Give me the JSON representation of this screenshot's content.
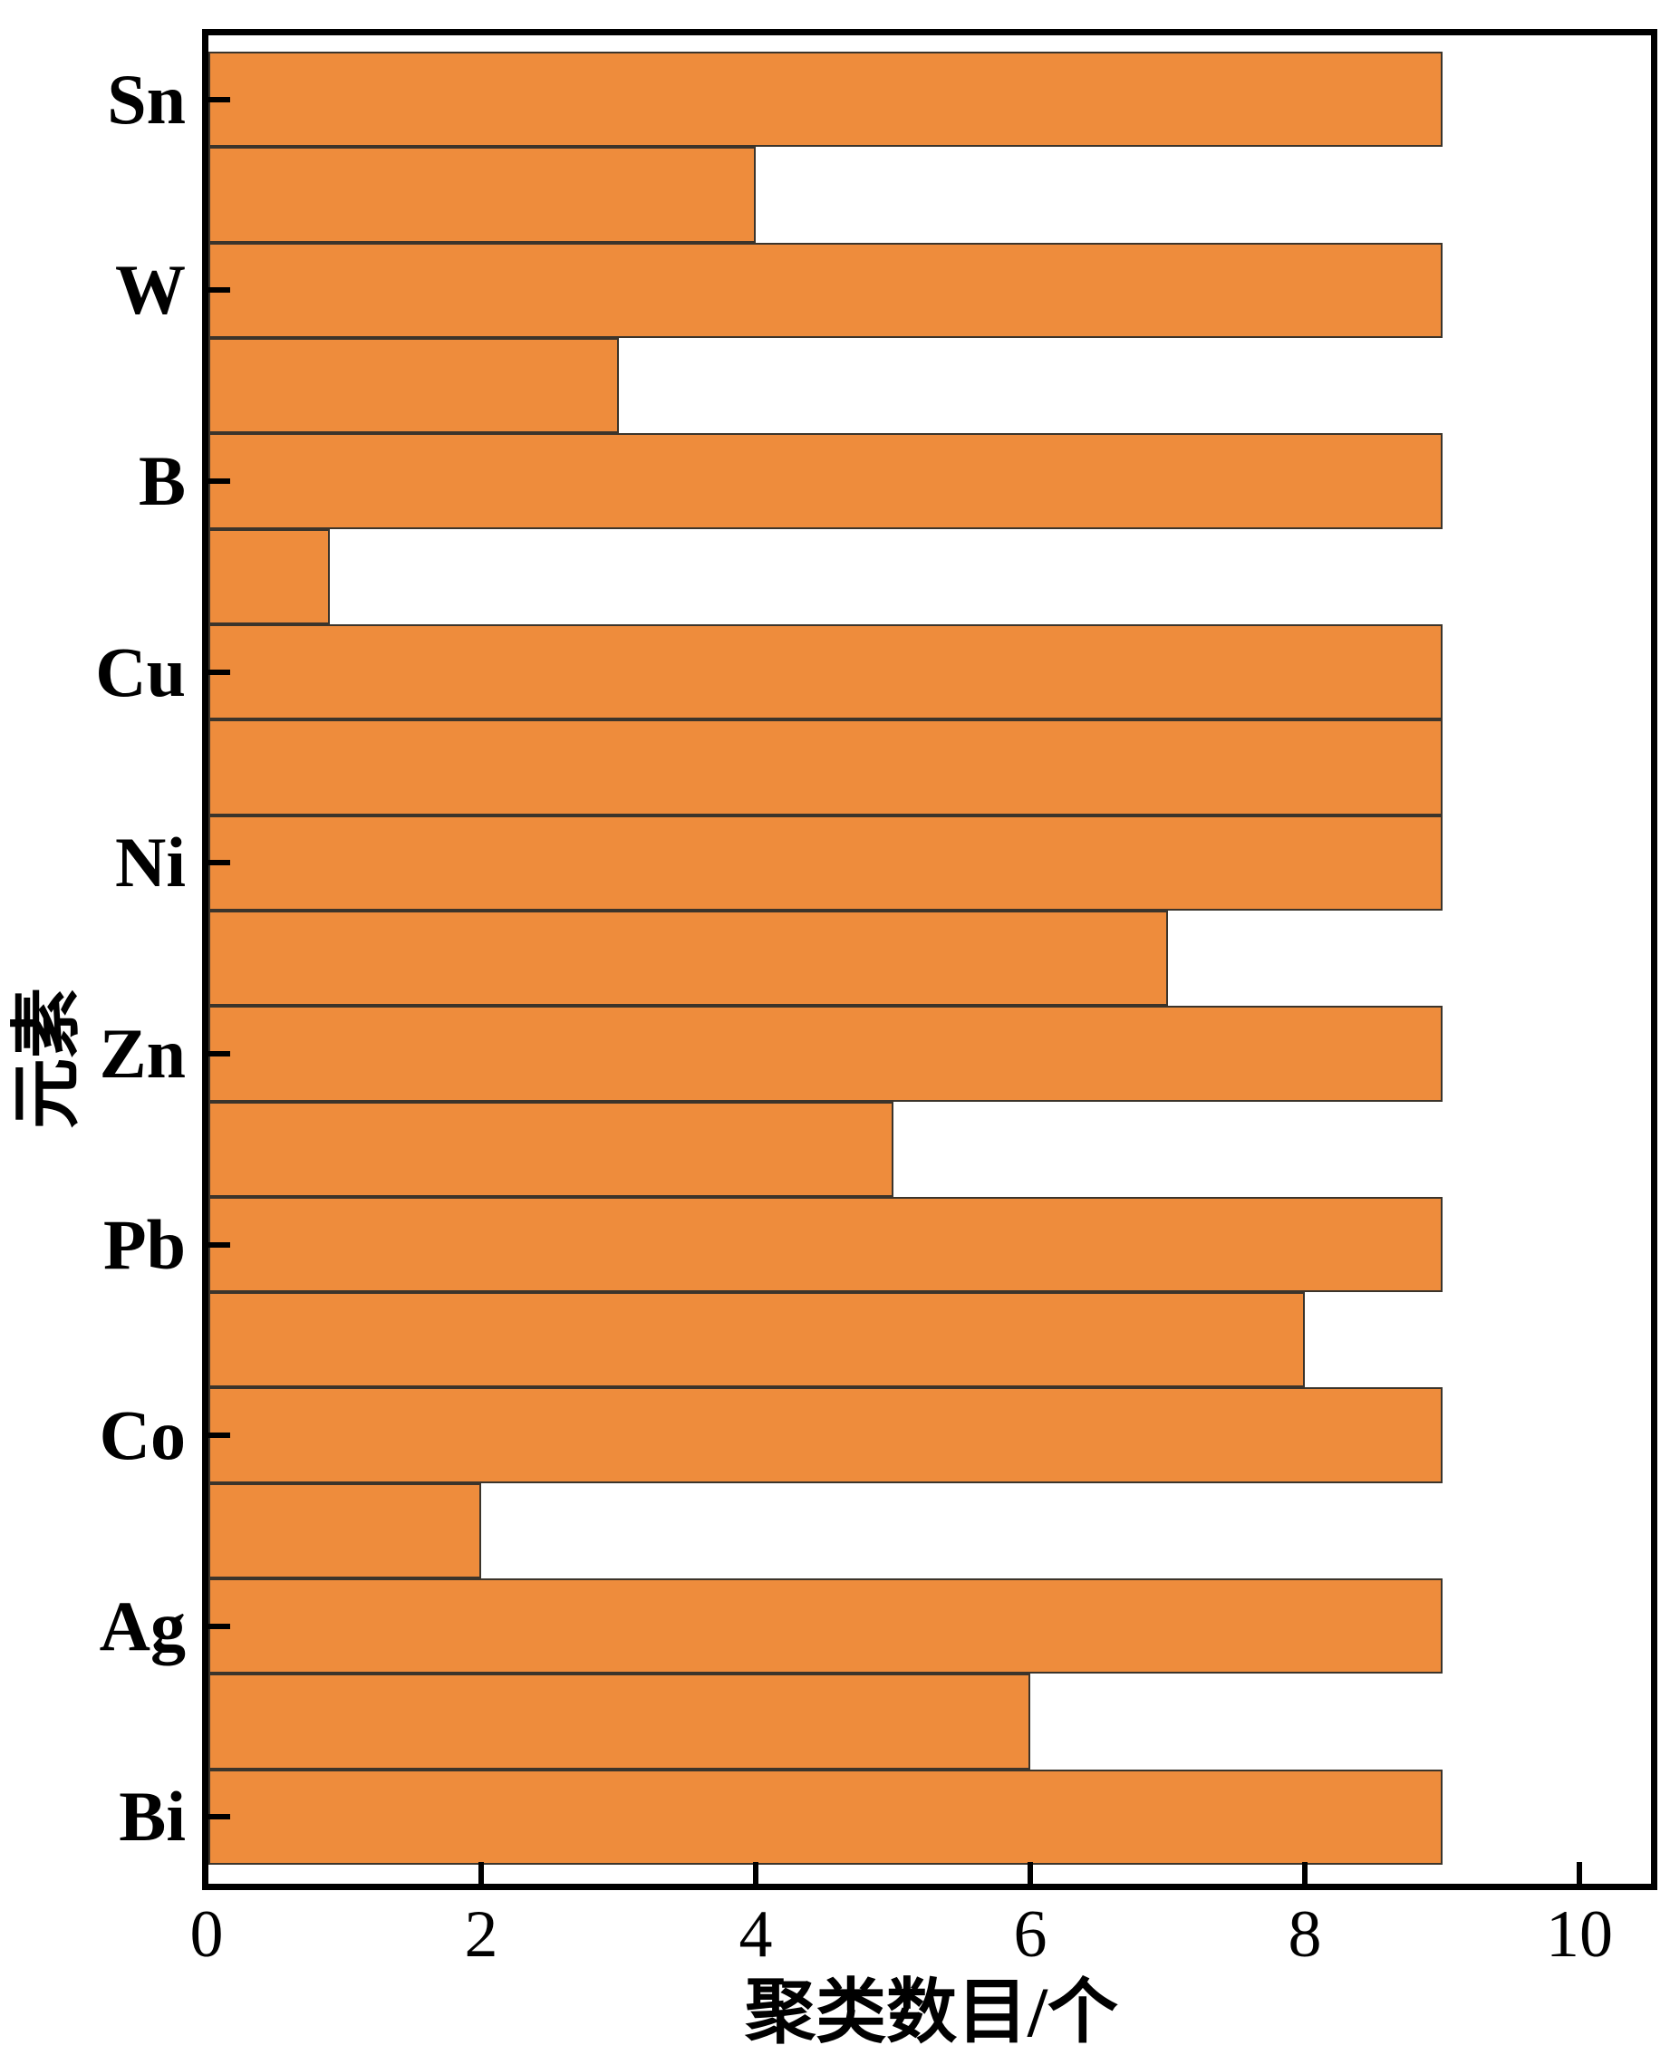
{
  "chart_data": {
    "type": "bar",
    "orientation": "horizontal",
    "title": "",
    "xlabel": "聚类数目/个",
    "ylabel": "元素",
    "xtick_labels": [
      "0",
      "2",
      "4",
      "6",
      "8",
      "10"
    ],
    "xtick_values": [
      0,
      2,
      4,
      6,
      8,
      10
    ],
    "xlim": [
      0,
      10.57
    ],
    "grid": false,
    "legend": null,
    "bar_color": "#EE8C3C",
    "bar_edge_color": "#3B342B",
    "axis_color": "#000000",
    "note": "19 horizontal bars, top to bottom; element tick labels appear on alternating bars",
    "bars": [
      {
        "label": "Sn",
        "value": 9
      },
      {
        "label": "",
        "value": 4
      },
      {
        "label": "W",
        "value": 9
      },
      {
        "label": "",
        "value": 3
      },
      {
        "label": "B",
        "value": 9
      },
      {
        "label": "",
        "value": 0.9
      },
      {
        "label": "Cu",
        "value": 9
      },
      {
        "label": "",
        "value": 9
      },
      {
        "label": "Ni",
        "value": 9
      },
      {
        "label": "",
        "value": 7
      },
      {
        "label": "Zn",
        "value": 9
      },
      {
        "label": "",
        "value": 5
      },
      {
        "label": "Pb",
        "value": 9
      },
      {
        "label": "",
        "value": 8
      },
      {
        "label": "Co",
        "value": 9
      },
      {
        "label": "",
        "value": 2
      },
      {
        "label": "Ag",
        "value": 9
      },
      {
        "label": "",
        "value": 6
      },
      {
        "label": "Bi",
        "value": 9
      }
    ]
  }
}
